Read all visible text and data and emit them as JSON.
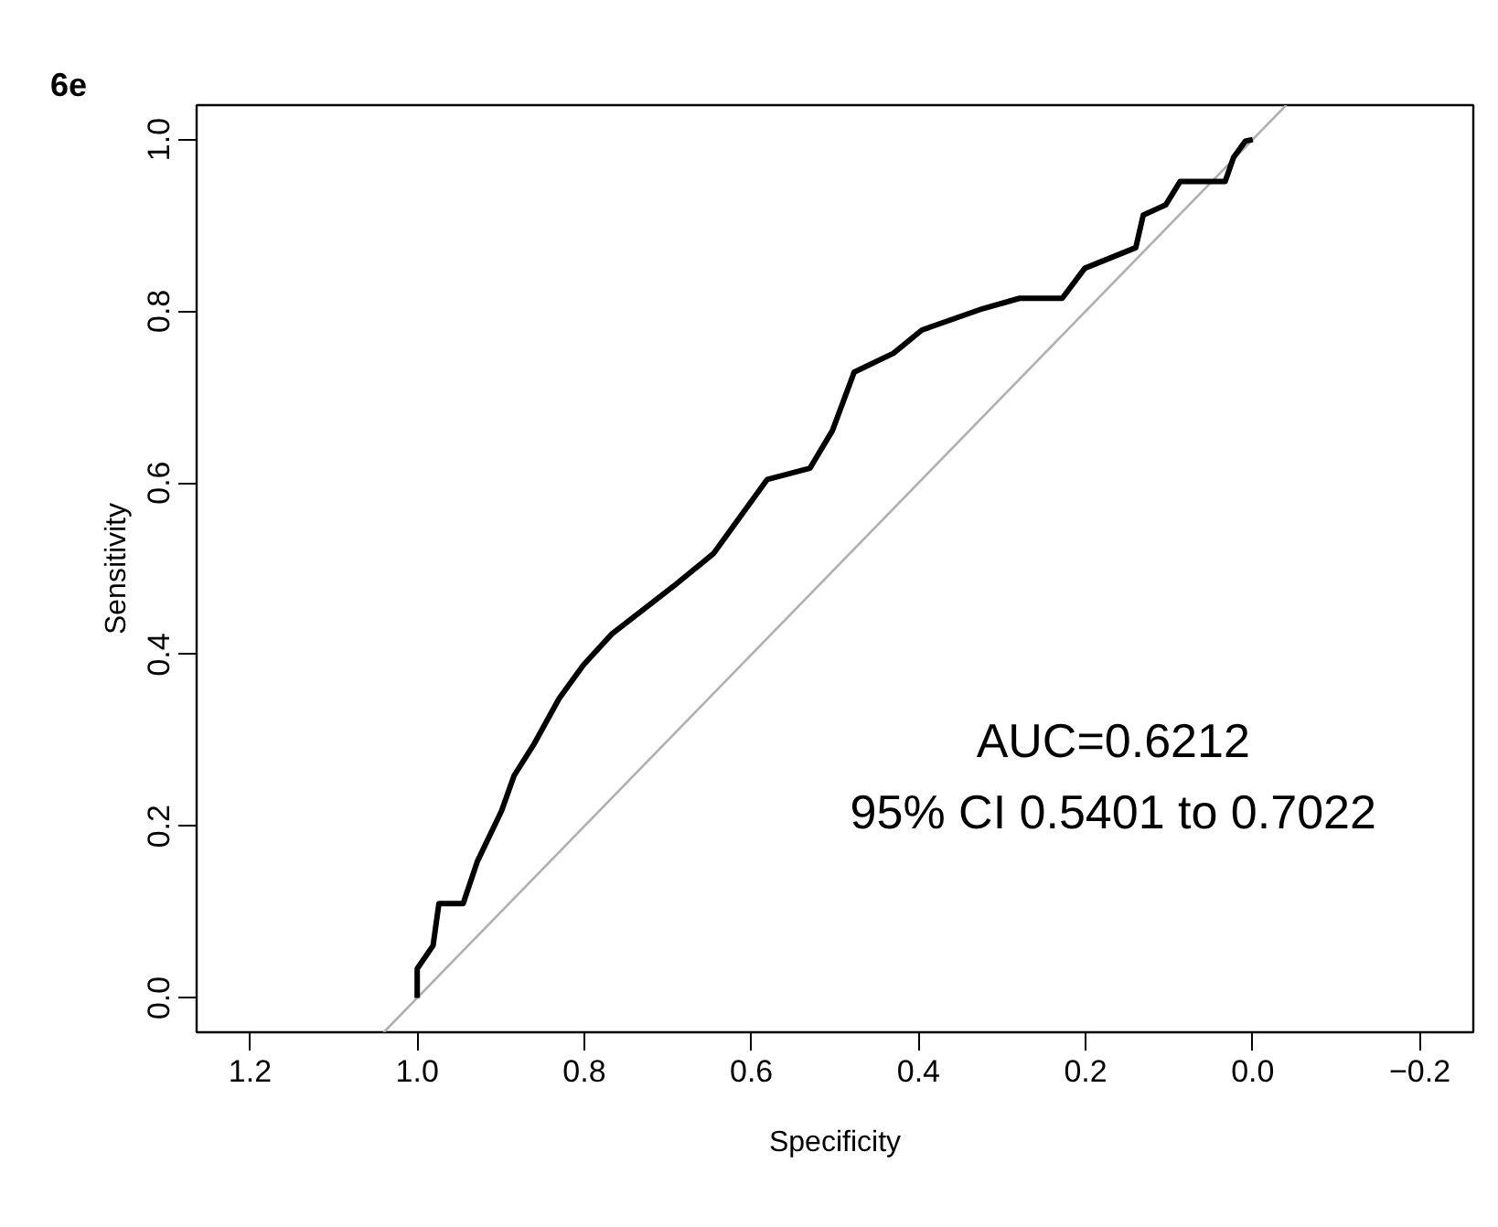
{
  "chart_data": {
    "type": "line",
    "title": "6e",
    "xlabel": "Specificity",
    "ylabel": "Sensitivity",
    "xlim": [
      1.264,
      -0.264
    ],
    "ylim": [
      -0.04,
      1.04
    ],
    "xticks": [
      1.2,
      {
        "value": 1.0,
        "label": "1.0"
      },
      0.8,
      0.6,
      0.4,
      0.2,
      {
        "value": 0.0,
        "label": "0.0"
      },
      -0.2
    ],
    "yticks": [
      {
        "value": 0.0,
        "label": "0.0"
      },
      0.2,
      0.4,
      0.6,
      0.8,
      {
        "value": 1.0,
        "label": "1.0"
      }
    ],
    "grid": false,
    "line_style": "solid",
    "series": [
      {
        "color": "#b0b0b0",
        "x": [
          1.04,
          -0.04
        ],
        "values": [
          -0.04,
          1.04
        ]
      },
      {
        "color": "#000000",
        "x": [
          1.0,
          1.0,
          0.981,
          0.974,
          0.945,
          0.928,
          0.899,
          0.884,
          0.86,
          0.83,
          0.801,
          0.767,
          0.694,
          0.645,
          0.581,
          0.53,
          0.503,
          0.477,
          0.43,
          0.396,
          0.323,
          0.279,
          0.228,
          0.201,
          0.14,
          0.131,
          0.104,
          0.087,
          0.033,
          0.023,
          0.009,
          0.0
        ],
        "values": [
          0.0,
          0.034,
          0.061,
          0.11,
          0.11,
          0.159,
          0.218,
          0.259,
          0.296,
          0.349,
          0.388,
          0.424,
          0.479,
          0.518,
          0.604,
          0.617,
          0.661,
          0.729,
          0.751,
          0.778,
          0.803,
          0.815,
          0.815,
          0.85,
          0.874,
          0.912,
          0.924,
          0.951,
          0.951,
          0.979,
          0.998,
          1.0
        ]
      }
    ],
    "annotations": [
      "AUC=0.6212",
      "95% CI 0.5401 to 0.7022"
    ]
  }
}
